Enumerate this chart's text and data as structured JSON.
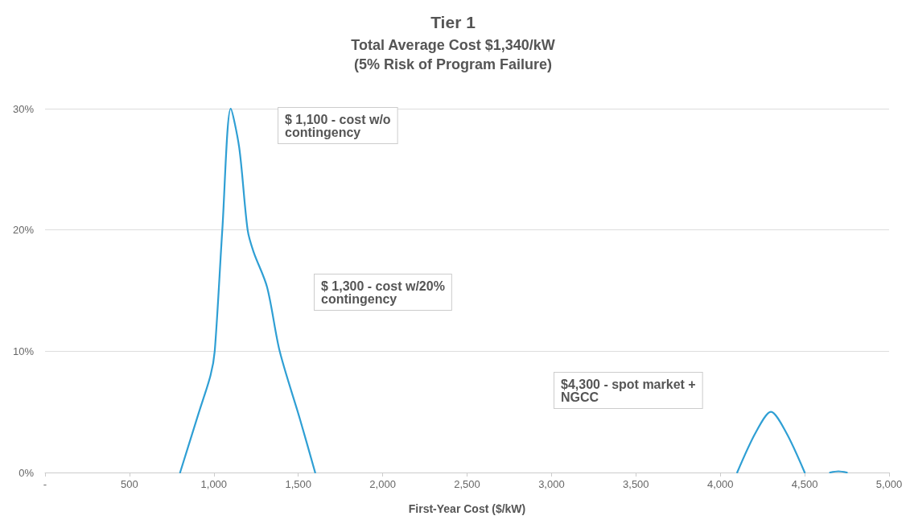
{
  "chart_data": {
    "type": "line",
    "title": "Tier 1",
    "subtitle": "Total Average Cost $1,340/kW\n(5% Risk of Program Failure)",
    "xlabel": "First-Year Cost ($/kW)",
    "x": [
      800,
      910,
      980,
      1005,
      1050,
      1100,
      1150,
      1200,
      1235,
      1315,
      1390,
      1510,
      1600,
      null,
      4100,
      4210,
      4300,
      4390,
      4500,
      null,
      4650,
      4700,
      4750
    ],
    "series": [
      {
        "color": "#2f9fd4",
        "values": [
          0,
          4.9,
          8,
          10,
          20,
          30,
          26.8,
          20,
          18.2,
          15.3,
          10,
          4.4,
          0,
          null,
          0,
          3.3,
          5,
          3.3,
          0,
          null,
          0,
          0.1,
          0
        ]
      }
    ],
    "xlim": [
      0,
      5000
    ],
    "xticks": [
      {
        "value": 0,
        "label": "-"
      },
      500,
      {
        "value": 1000,
        "label": "1,000"
      },
      {
        "value": 1500,
        "label": "1,500"
      },
      {
        "value": 2000,
        "label": "2,000"
      },
      {
        "value": 2500,
        "label": "2,500"
      },
      {
        "value": 3000,
        "label": "3,000"
      },
      {
        "value": 3500,
        "label": "3,500"
      },
      {
        "value": 4000,
        "label": "4,000"
      },
      {
        "value": 4500,
        "label": "4,500"
      },
      {
        "value": 5000,
        "label": "5,000"
      }
    ],
    "ylim": [
      0,
      30
    ],
    "yticks": [
      {
        "value": 0,
        "label": "0%"
      },
      {
        "value": 10,
        "label": "10%"
      },
      {
        "value": 20,
        "label": "20%"
      },
      {
        "value": 30,
        "label": "30%"
      }
    ],
    "grid": "y",
    "marker": "none",
    "line_style": "solid",
    "annotations": [
      "$ 1,100 - cost w/o\ncontingency",
      "$ 1,300 - cost w/20%\ncontingency",
      "$4,300 - spot market +\nNGCC"
    ]
  }
}
